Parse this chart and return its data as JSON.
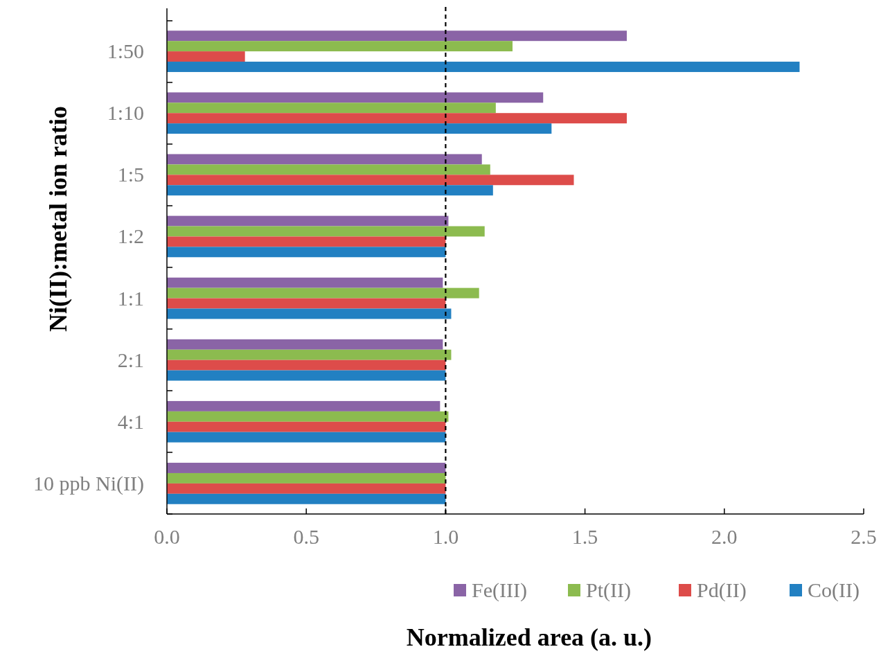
{
  "chart_data": {
    "type": "bar",
    "orientation": "horizontal",
    "xlabel": "Normalized area (a. u.)",
    "ylabel": "Ni(II):metal ion ratio",
    "categories": [
      "1:50",
      "1:10",
      "1:5",
      "1:2",
      "1:1",
      "2:1",
      "4:1",
      "10 ppb Ni(II)"
    ],
    "series": [
      {
        "name": "Fe(III)",
        "color": "#8a64a6",
        "values": [
          1.65,
          1.35,
          1.13,
          1.01,
          0.99,
          0.99,
          0.98,
          1.0
        ]
      },
      {
        "name": "Pt(II)",
        "color": "#8cbb4f",
        "values": [
          1.24,
          1.18,
          1.16,
          1.14,
          1.12,
          1.02,
          1.01,
          1.0
        ]
      },
      {
        "name": "Pd(II)",
        "color": "#dd4c4a",
        "values": [
          0.28,
          1.65,
          1.46,
          1.0,
          1.0,
          1.0,
          1.0,
          1.0
        ]
      },
      {
        "name": "Co(II)",
        "color": "#2280c2",
        "values": [
          2.27,
          1.38,
          1.17,
          1.0,
          1.02,
          1.0,
          1.0,
          1.0
        ]
      }
    ],
    "xlim": [
      0,
      2.5
    ],
    "xticks": [
      {
        "value": 0,
        "label": "0.0"
      },
      {
        "value": 0.5,
        "label": "0.5"
      },
      {
        "value": 1,
        "label": "1.0"
      },
      {
        "value": 1.5,
        "label": "1.5"
      },
      {
        "value": 2,
        "label": "2.0"
      },
      {
        "value": 2.5,
        "label": "2.5"
      }
    ],
    "ref_lines": [
      {
        "axis": "x",
        "value": 1,
        "label": null,
        "color": "#000000",
        "line_style": "dashed"
      }
    ],
    "grid": false,
    "legend": "bottom right"
  }
}
